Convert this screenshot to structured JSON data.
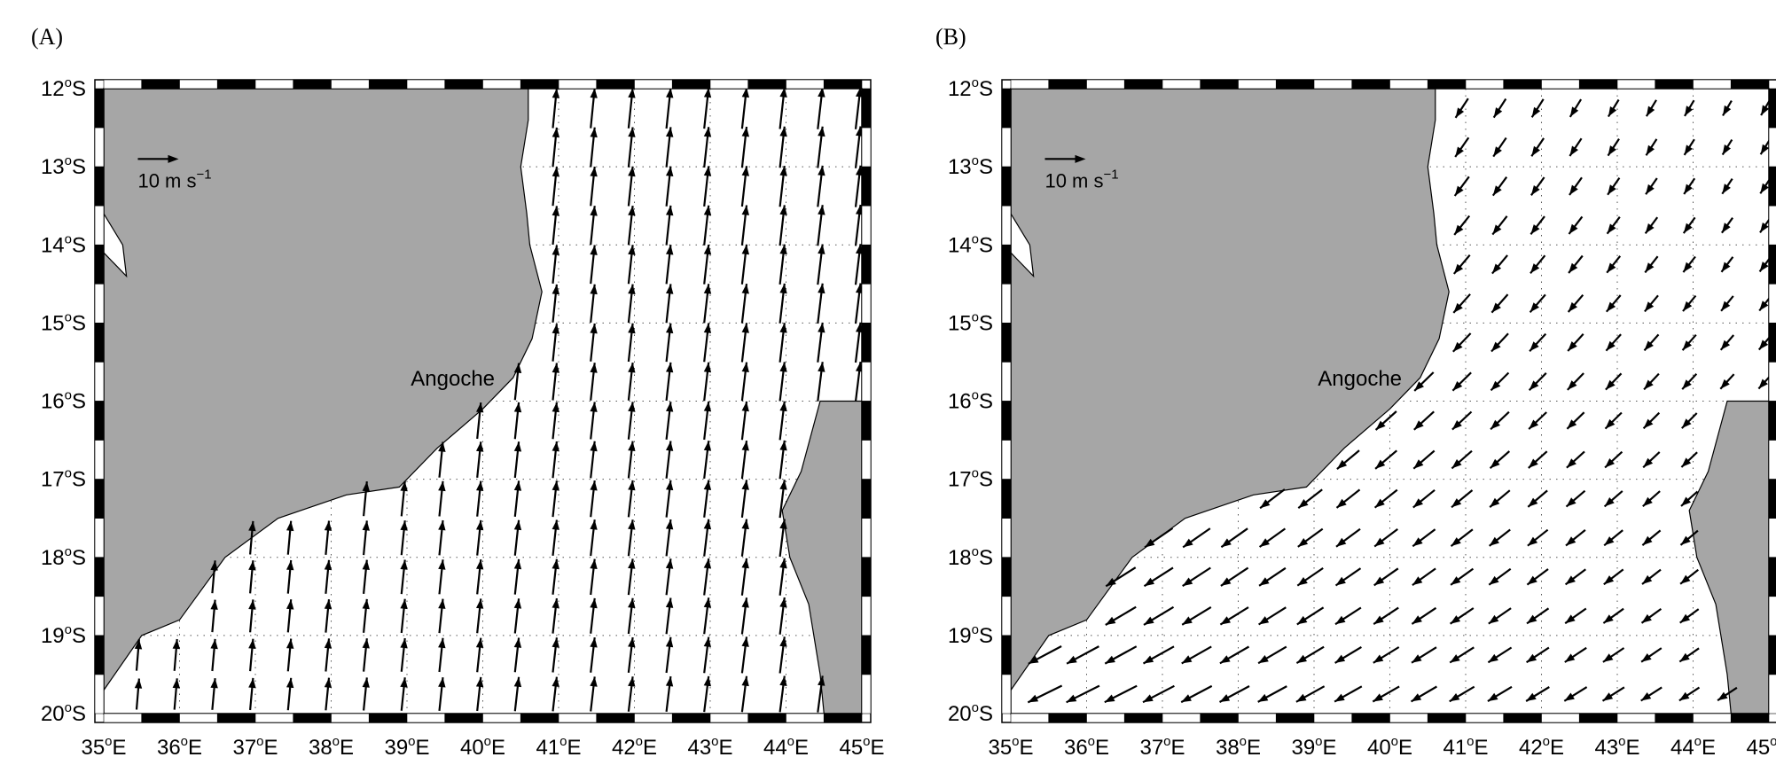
{
  "panels": [
    {
      "label": "(A)",
      "place_name": "Angoche",
      "scale_label": "10 m s",
      "scale_exp": "−1",
      "wind_regime": "north",
      "lat_ticks": [
        {
          "deg": "12",
          "sup": "o",
          "hem": "S"
        },
        {
          "deg": "13",
          "sup": "o",
          "hem": "S"
        },
        {
          "deg": "14",
          "sup": "o",
          "hem": "S"
        },
        {
          "deg": "15",
          "sup": "o",
          "hem": "S"
        },
        {
          "deg": "16",
          "sup": "o",
          "hem": "S"
        },
        {
          "deg": "17",
          "sup": "o",
          "hem": "S"
        },
        {
          "deg": "18",
          "sup": "o",
          "hem": "S"
        },
        {
          "deg": "19",
          "sup": "o",
          "hem": "S"
        },
        {
          "deg": "20",
          "sup": "o",
          "hem": "S"
        }
      ],
      "lon_ticks": [
        {
          "deg": "35",
          "sup": "o",
          "hem": "E"
        },
        {
          "deg": "36",
          "sup": "o",
          "hem": "E"
        },
        {
          "deg": "37",
          "sup": "o",
          "hem": "E"
        },
        {
          "deg": "38",
          "sup": "o",
          "hem": "E"
        },
        {
          "deg": "39",
          "sup": "o",
          "hem": "E"
        },
        {
          "deg": "40",
          "sup": "o",
          "hem": "E"
        },
        {
          "deg": "41",
          "sup": "o",
          "hem": "E"
        },
        {
          "deg": "42",
          "sup": "o",
          "hem": "E"
        },
        {
          "deg": "43",
          "sup": "o",
          "hem": "E"
        },
        {
          "deg": "44",
          "sup": "o",
          "hem": "E"
        },
        {
          "deg": "45",
          "sup": "o",
          "hem": "E"
        }
      ]
    },
    {
      "label": "(B)",
      "place_name": "Angoche",
      "scale_label": "10 m s",
      "scale_exp": "−1",
      "wind_regime": "southwest",
      "lat_ticks": [
        {
          "deg": "12",
          "sup": "o",
          "hem": "S"
        },
        {
          "deg": "13",
          "sup": "o",
          "hem": "S"
        },
        {
          "deg": "14",
          "sup": "o",
          "hem": "S"
        },
        {
          "deg": "15",
          "sup": "o",
          "hem": "S"
        },
        {
          "deg": "16",
          "sup": "o",
          "hem": "S"
        },
        {
          "deg": "17",
          "sup": "o",
          "hem": "S"
        },
        {
          "deg": "18",
          "sup": "o",
          "hem": "S"
        },
        {
          "deg": "19",
          "sup": "o",
          "hem": "S"
        },
        {
          "deg": "20",
          "sup": "o",
          "hem": "S"
        }
      ],
      "lon_ticks": [
        {
          "deg": "35",
          "sup": "o",
          "hem": "E"
        },
        {
          "deg": "36",
          "sup": "o",
          "hem": "E"
        },
        {
          "deg": "37",
          "sup": "o",
          "hem": "E"
        },
        {
          "deg": "38",
          "sup": "o",
          "hem": "E"
        },
        {
          "deg": "39",
          "sup": "o",
          "hem": "E"
        },
        {
          "deg": "40",
          "sup": "o",
          "hem": "E"
        },
        {
          "deg": "41",
          "sup": "o",
          "hem": "E"
        },
        {
          "deg": "42",
          "sup": "o",
          "hem": "E"
        },
        {
          "deg": "43",
          "sup": "o",
          "hem": "E"
        },
        {
          "deg": "44",
          "sup": "o",
          "hem": "E"
        },
        {
          "deg": "45",
          "sup": "o",
          "hem": "E"
        }
      ]
    }
  ],
  "map": {
    "lon_range": [
      35,
      45
    ],
    "lat_range": [
      -20,
      -12
    ],
    "land_color": "#a6a6a6",
    "ocean_color": "#ffffff",
    "grid": "dotted",
    "scale_vector_ms": 10,
    "coast_mainland": [
      [
        35.0,
        -19.7
      ],
      [
        35.5,
        -19.0
      ],
      [
        36.0,
        -18.8
      ],
      [
        36.6,
        -18.0
      ],
      [
        37.3,
        -17.5
      ],
      [
        38.2,
        -17.2
      ],
      [
        38.9,
        -17.1
      ],
      [
        39.4,
        -16.6
      ],
      [
        40.0,
        -16.1
      ],
      [
        40.4,
        -15.7
      ],
      [
        40.65,
        -15.2
      ],
      [
        40.78,
        -14.6
      ],
      [
        40.62,
        -14.0
      ],
      [
        40.58,
        -13.6
      ],
      [
        40.5,
        -13.0
      ],
      [
        40.6,
        -12.4
      ],
      [
        40.6,
        -12.0
      ]
    ],
    "coast_madagascar": [
      [
        45.0,
        -16.0
      ],
      [
        44.45,
        -16.0
      ],
      [
        44.2,
        -16.9
      ],
      [
        43.95,
        -17.4
      ],
      [
        44.05,
        -18.0
      ],
      [
        44.3,
        -18.6
      ],
      [
        44.45,
        -19.5
      ],
      [
        44.5,
        -20.0
      ],
      [
        45.0,
        -20.0
      ]
    ],
    "islet": [
      [
        35.0,
        -13.6
      ],
      [
        35.25,
        -14.0
      ],
      [
        35.3,
        -14.4
      ],
      [
        35.0,
        -14.1
      ]
    ]
  }
}
